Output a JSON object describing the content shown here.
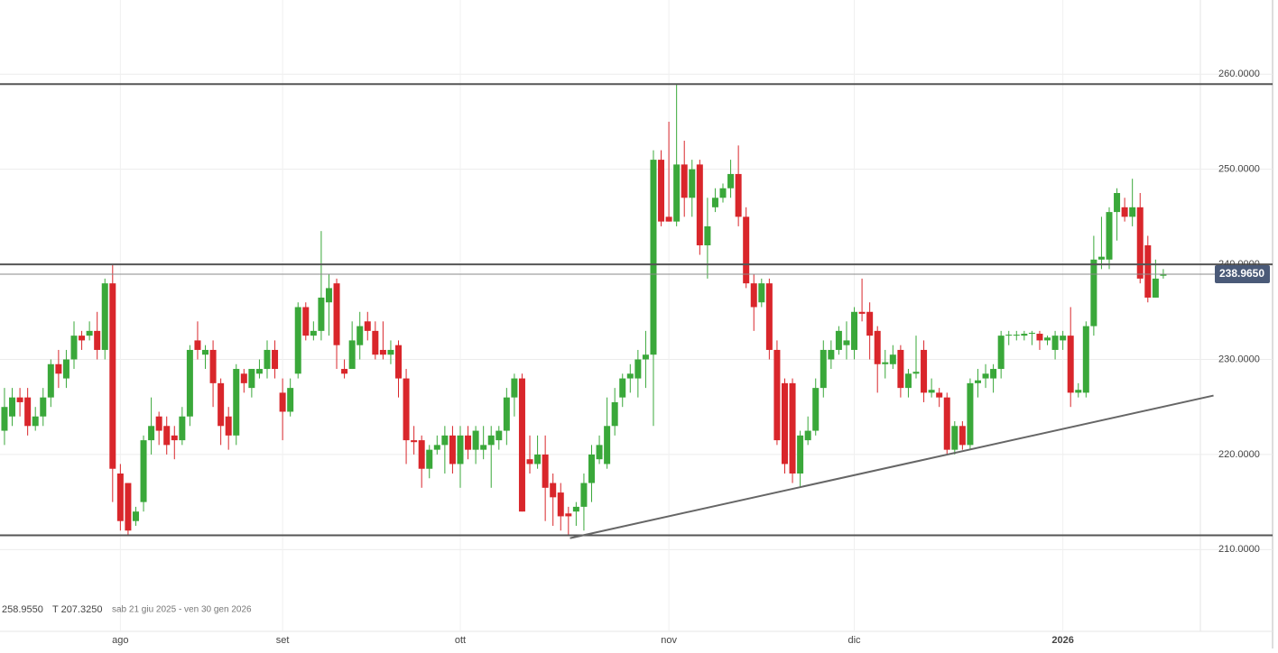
{
  "chart_data": {
    "type": "candlestick",
    "categories": [
      null,
      null,
      null,
      null,
      null,
      null,
      null,
      null,
      null,
      null,
      null,
      null,
      null,
      null,
      null,
      "ago",
      null,
      null,
      null,
      null,
      null,
      null,
      null,
      null,
      null,
      null,
      null,
      null,
      null,
      null,
      null,
      null,
      null,
      null,
      null,
      null,
      "set",
      null,
      null,
      null,
      null,
      null,
      null,
      null,
      null,
      null,
      null,
      null,
      null,
      null,
      null,
      null,
      null,
      null,
      null,
      null,
      null,
      null,
      null,
      "ott",
      null,
      null,
      null,
      null,
      null,
      null,
      null,
      null,
      null,
      null,
      null,
      null,
      null,
      null,
      null,
      null,
      null,
      null,
      null,
      null,
      null,
      null,
      null,
      null,
      null,
      null,
      "nov",
      null,
      null,
      null,
      null,
      null,
      null,
      null,
      null,
      null,
      null,
      null,
      null,
      null,
      null,
      null,
      null,
      null,
      null,
      null,
      null,
      null,
      null,
      null,
      "dic",
      null,
      null,
      null,
      null,
      null,
      null,
      null,
      null,
      null,
      null,
      null,
      null,
      null,
      null,
      null,
      null,
      null,
      null,
      null,
      null,
      null,
      null,
      null,
      null,
      null,
      null,
      "2026",
      null,
      null,
      null,
      null,
      null,
      null,
      null,
      null,
      null,
      null,
      null,
      null,
      null
    ],
    "open": [
      222.5,
      224,
      226,
      226,
      223,
      224,
      226,
      229.5,
      228,
      230,
      232.5,
      232.5,
      233,
      231,
      238,
      218,
      217,
      213,
      215,
      221.5,
      224,
      223,
      222,
      221.5,
      224,
      232,
      230.5,
      231,
      227.5,
      224,
      222,
      228.5,
      227,
      228.5,
      229,
      231,
      226.5,
      224.5,
      228.5,
      235.5,
      232.5,
      233,
      236,
      238,
      229,
      229,
      231.5,
      234,
      233,
      231,
      230.5,
      231.5,
      228,
      221.5,
      221.5,
      218.5,
      220.5,
      221,
      222,
      219,
      222,
      220.5,
      220.5,
      221,
      221.5,
      222.5,
      226,
      228,
      219.5,
      219,
      220,
      217,
      216,
      213.8,
      214,
      214.5,
      217,
      219.5,
      219,
      223,
      226,
      228,
      228,
      230,
      230.5,
      251,
      245,
      244.5,
      250.5,
      247,
      250.5,
      242,
      246,
      247,
      248,
      249.5,
      245,
      238,
      236,
      238,
      231,
      227.5,
      227.5,
      218,
      221.5,
      222.5,
      227,
      230,
      231,
      231.5,
      231,
      235,
      235,
      233,
      229.5,
      229.5,
      231,
      227,
      228.5,
      231,
      226.5,
      226.5,
      226,
      220.5,
      223,
      221,
      227.5,
      228,
      228,
      229,
      232.5,
      232.5,
      232.5,
      232.7,
      232.7,
      232,
      231,
      232,
      232.5,
      226.5,
      226.5,
      233.5,
      240.5,
      240.5,
      245.5,
      246,
      245,
      246,
      242,
      236.5,
      238.8
    ],
    "high": [
      227,
      227,
      227,
      227,
      225,
      227,
      230,
      231,
      231,
      234,
      233,
      234,
      235,
      238.5,
      240,
      219,
      217,
      214.5,
      222,
      226,
      224.5,
      224,
      223,
      225,
      231.5,
      234,
      231.5,
      232,
      228,
      225,
      229.5,
      229,
      229,
      230,
      232,
      232,
      228,
      228,
      236,
      236,
      234,
      243.5,
      239,
      238.5,
      230,
      234,
      235,
      235,
      234,
      234,
      232,
      232,
      229,
      223,
      222,
      221,
      222,
      223,
      223,
      223,
      223,
      223,
      223,
      223,
      223,
      227,
      228.5,
      228.5,
      222,
      222,
      222,
      218,
      217,
      214.5,
      215,
      218,
      221,
      222,
      226,
      227,
      228.5,
      229.5,
      231,
      233,
      252,
      252,
      255,
      259,
      253,
      251,
      251,
      247,
      248,
      248.5,
      251,
      252.5,
      246,
      239,
      238.5,
      238.5,
      232,
      228,
      228,
      222.5,
      224,
      228,
      232,
      232,
      233.5,
      234,
      235.5,
      238.5,
      236,
      233.5,
      231,
      231.5,
      231.5,
      229,
      232.5,
      232,
      228,
      227,
      226.5,
      223.5,
      223.5,
      228,
      229,
      229.5,
      229.5,
      233,
      233,
      233,
      233,
      233,
      233,
      232.5,
      233,
      233,
      235.5,
      227.5,
      234,
      243,
      245,
      246,
      248,
      247,
      249,
      247.5,
      243,
      240.5,
      239.5
    ],
    "low": [
      221,
      223,
      224,
      222,
      222.5,
      223,
      225,
      227,
      227,
      229,
      231,
      232,
      230,
      230,
      215,
      212,
      211.5,
      212.5,
      214,
      220,
      221,
      220,
      219.5,
      221,
      223,
      230,
      229,
      225,
      221,
      220.5,
      221,
      226.5,
      226,
      228,
      228,
      228,
      221.5,
      224,
      228,
      232,
      232,
      232,
      232.5,
      229,
      228,
      229,
      230,
      232,
      230,
      230,
      229.5,
      226,
      219,
      220,
      216.5,
      217.5,
      220,
      218,
      218,
      216.5,
      219.5,
      219,
      219.5,
      216.5,
      220.5,
      221,
      224,
      214,
      218,
      218.5,
      213,
      212.5,
      212,
      211.5,
      212.5,
      212,
      215,
      219,
      218.5,
      222,
      225,
      226.5,
      226,
      227,
      223,
      244,
      244.5,
      244,
      245,
      245,
      241,
      238.5,
      245.5,
      246.5,
      247,
      244,
      237.5,
      233,
      235.5,
      230,
      221,
      218,
      217,
      216.5,
      221,
      222,
      226,
      229,
      230.5,
      230,
      230,
      234,
      230,
      226.5,
      228,
      229,
      226,
      226,
      228,
      225.5,
      226,
      225,
      220,
      220,
      220.5,
      220.5,
      226,
      227,
      226.5,
      228,
      231.5,
      232,
      232,
      231.5,
      231,
      231.5,
      230,
      231,
      225,
      226,
      226,
      232.5,
      239.5,
      239.5,
      242.5,
      244.5,
      244,
      238,
      236,
      236.5,
      238.5
    ],
    "close": [
      225,
      226,
      225.5,
      223,
      224,
      226,
      229.5,
      228.5,
      230,
      232.5,
      232,
      233,
      231,
      238,
      218.5,
      213,
      212,
      214,
      221.5,
      223,
      222.5,
      221,
      221.5,
      224,
      231,
      231,
      231,
      227.5,
      223,
      222,
      229,
      227.5,
      229,
      229,
      231,
      229,
      224.5,
      227,
      235.5,
      232.5,
      233,
      236.5,
      237.5,
      231.5,
      228.5,
      232,
      233.5,
      233,
      230.5,
      230.5,
      231,
      228,
      221.5,
      221.3,
      218.5,
      220.5,
      221,
      222,
      219,
      222,
      220.5,
      222.5,
      221,
      222,
      222.5,
      226,
      228,
      214,
      219,
      220,
      216.5,
      215.5,
      213.5,
      213.5,
      214.5,
      217,
      220,
      221,
      223,
      225.5,
      228,
      228.5,
      230,
      230.5,
      251,
      244.5,
      244.5,
      250.5,
      247,
      250,
      242,
      244,
      247,
      248,
      249.5,
      245,
      238,
      235.5,
      238,
      231,
      221.5,
      219,
      218,
      222,
      222.5,
      227,
      231,
      231,
      233,
      232,
      235,
      234.8,
      232.5,
      229.5,
      229.7,
      230.5,
      227,
      228.5,
      228.7,
      226.5,
      226.8,
      226,
      220.5,
      223,
      221,
      227.5,
      227.8,
      228.5,
      229,
      232.5,
      232.6,
      232.6,
      232.7,
      232.8,
      232,
      232.3,
      232.5,
      232.5,
      226.5,
      226.8,
      233.5,
      240.5,
      240.8,
      245.5,
      247.5,
      245,
      246,
      238.5,
      236.5,
      238.5,
      239
    ],
    "up_color": "#3aa83a",
    "down_color": "#d9262b",
    "xlim": [
      -0.58,
      154.8
    ],
    "ylim": [
      201.4,
      267.8
    ],
    "yticks": [
      {
        "value": 210,
        "label": "210.0000"
      },
      {
        "value": 220,
        "label": "220.0000"
      },
      {
        "value": 230,
        "label": "230.0000"
      },
      {
        "value": 240,
        "label": "240.0000"
      },
      {
        "value": 250,
        "label": "250.0000"
      },
      {
        "value": 260,
        "label": "260.0000"
      }
    ],
    "grid": true,
    "levels": [
      258.95,
      240,
      211.5
    ],
    "trendline": {
      "x": [
        73.2,
        156.5
      ],
      "y": [
        211.2,
        226.2
      ]
    },
    "last_price": {
      "value": 238.965,
      "label": "238.9650"
    },
    "footer": {
      "high": "258.9550",
      "low": "T 207.3250",
      "range": "sab 21 giu 2025 - ven 30 gen 2026"
    }
  }
}
